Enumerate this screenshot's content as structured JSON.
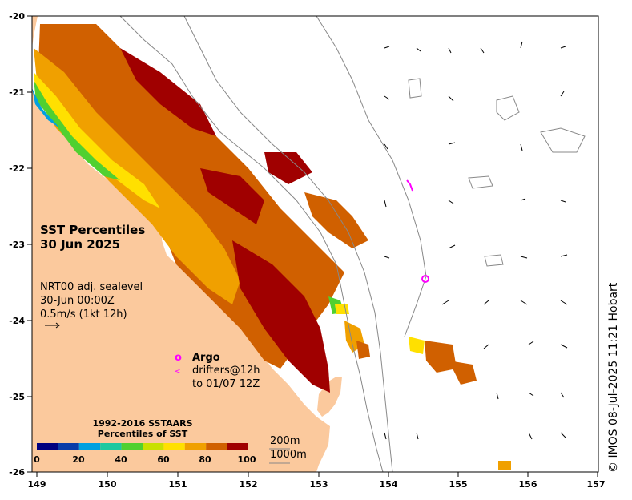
{
  "title": {
    "line1": "SST Percentiles",
    "line2": "30 Jun 2025"
  },
  "info": {
    "line1": "NRT00 adj. sealevel",
    "line2": "30-Jun 00:00Z",
    "line3": "0.5m/s (1kt 12h)"
  },
  "argo": {
    "symbol": "o",
    "label": "Argo",
    "drifter_symbol": "<",
    "drifters_line1": "drifters@12h",
    "drifters_line2": "to 01/07 12Z"
  },
  "legend": {
    "title1": "1992-2016 SSTAARS",
    "title2": "Percentiles of SST",
    "ticks": [
      "0",
      "20",
      "40",
      "60",
      "80",
      "100"
    ],
    "colors": [
      "#000080",
      "#0a3ca8",
      "#00a0e0",
      "#1ec8a0",
      "#50d030",
      "#c8e000",
      "#ffe000",
      "#f0a000",
      "#d06000",
      "#a00000"
    ]
  },
  "depth": {
    "contour1": "200m",
    "contour2": "1000m"
  },
  "axes": {
    "x_ticks": [
      "149",
      "150",
      "151",
      "152",
      "153",
      "154",
      "155",
      "156",
      "157"
    ],
    "y_ticks": [
      "-20",
      "-21",
      "-22",
      "-23",
      "-24",
      "-25",
      "-26"
    ]
  },
  "credit": "© IMOS 08-Jul-2025 11:21 Hobart",
  "colors": {
    "land": "#fbc99d",
    "sea": "#ffffff",
    "contour": "#888888",
    "argo": "#ff00ff"
  }
}
